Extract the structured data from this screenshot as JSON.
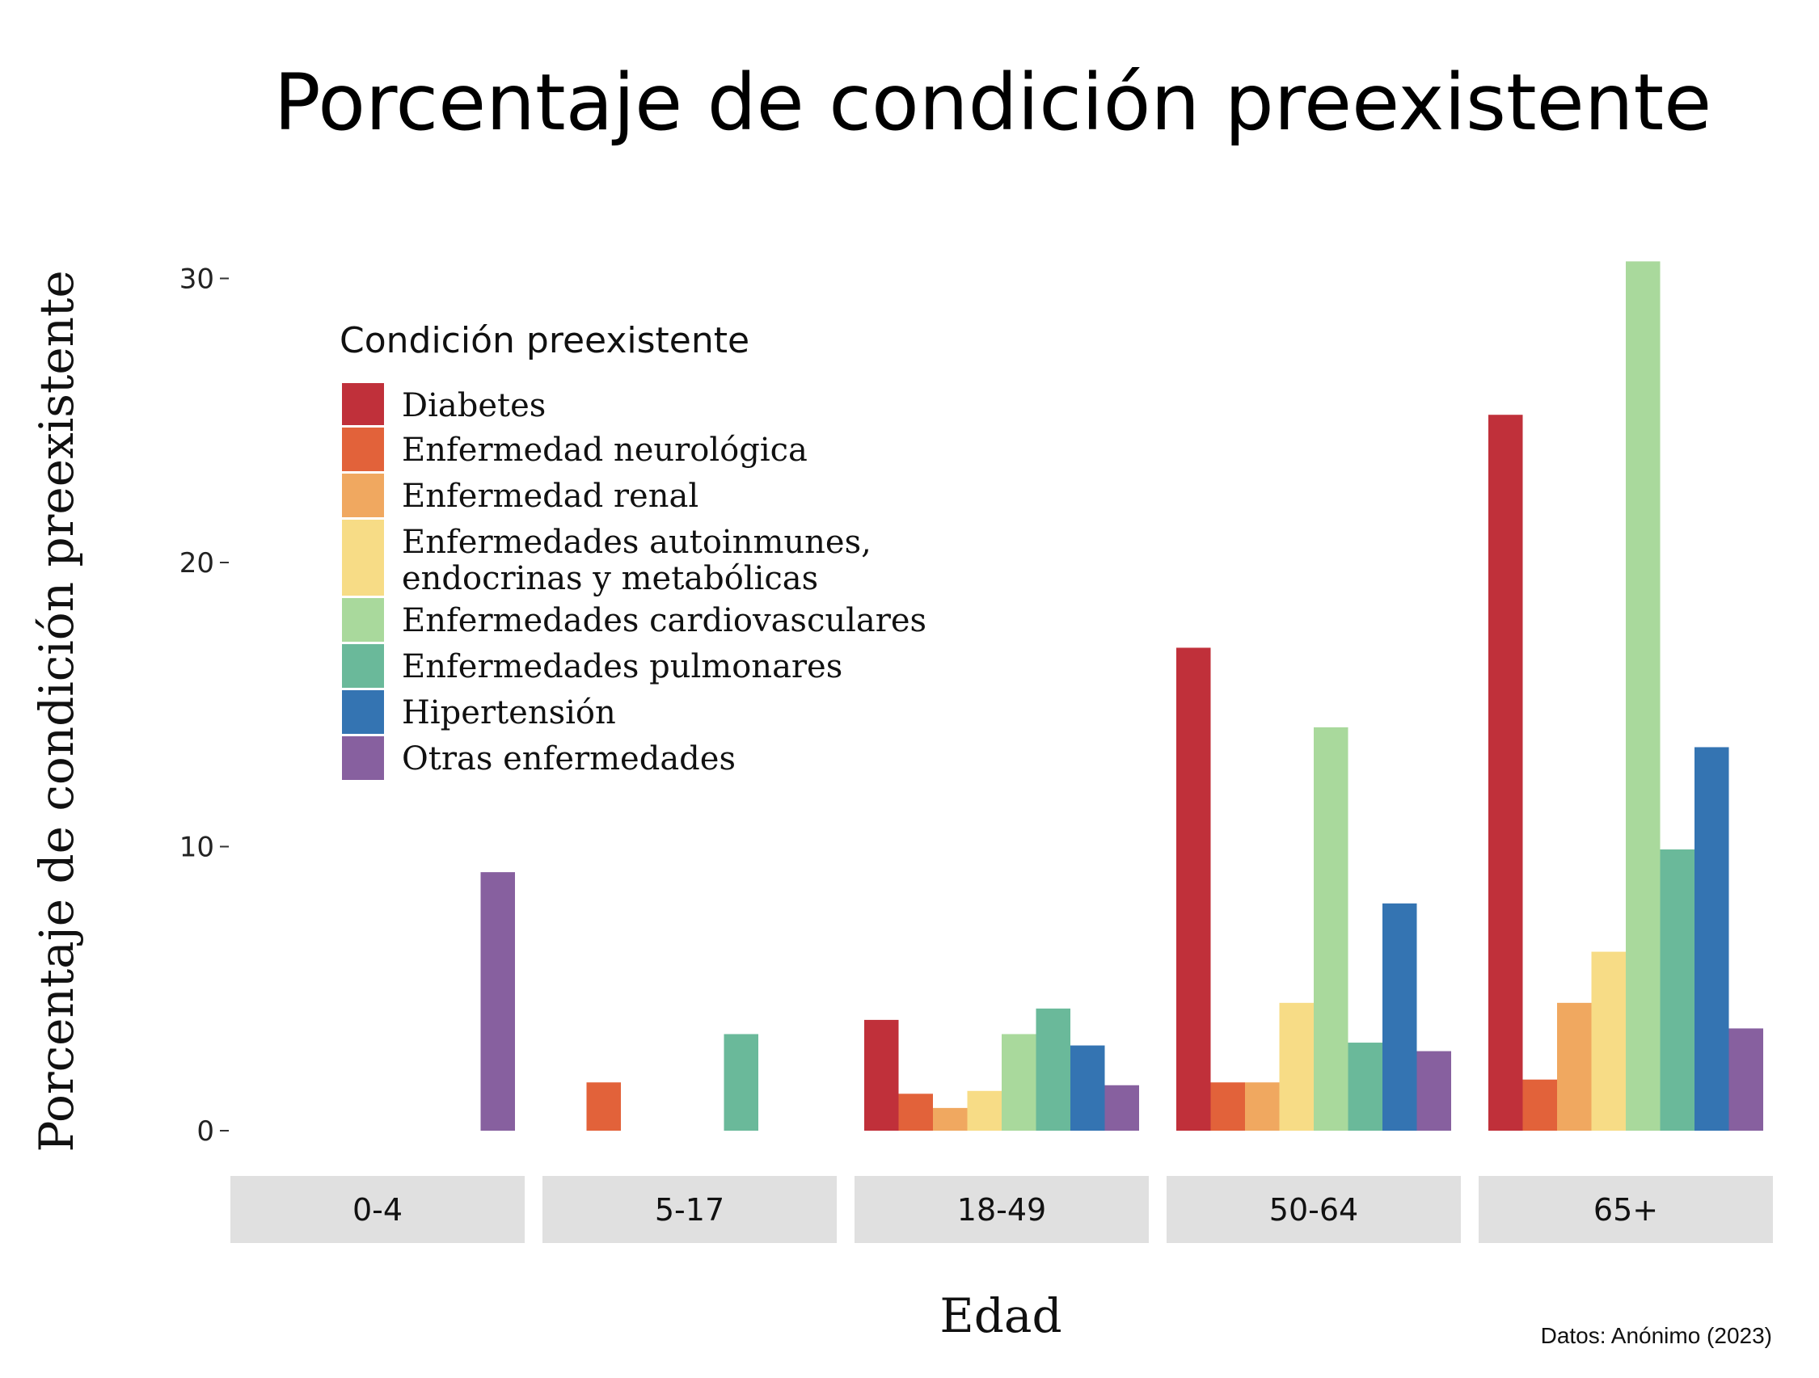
{
  "chart_data": {
    "type": "bar",
    "title": "Porcentaje de condición preexistente",
    "xlabel": "Edad",
    "ylabel": "Porcentaje de condición preexistente",
    "caption": "Datos: Anónimo (2023)",
    "ylim": [
      0,
      31
    ],
    "yticks": [
      "0",
      "10",
      "20",
      "30"
    ],
    "grid": false,
    "legend_title": "Condición preexistente",
    "legend_position": "top-left",
    "categories": [
      "0-4",
      "5-17",
      "18-49",
      "50-64",
      "65+"
    ],
    "series": [
      {
        "name": "Diabetes",
        "color": "#C0303A",
        "values": [
          null,
          null,
          3.9,
          17.0,
          25.2
        ]
      },
      {
        "name": "Enfermedad neurológica",
        "color": "#E2623A",
        "values": [
          null,
          1.7,
          1.3,
          1.7,
          1.8
        ]
      },
      {
        "name": "Enfermedad renal",
        "color": "#F0A860",
        "values": [
          null,
          null,
          0.8,
          1.7,
          4.5
        ]
      },
      {
        "name": "Enfermedades autoinmunes, endocrinas y metabólicas",
        "color": "#F7DC86",
        "values": [
          null,
          null,
          1.4,
          4.5,
          6.3
        ]
      },
      {
        "name": "Enfermedades cardiovasculares",
        "color": "#A9D99C",
        "values": [
          null,
          null,
          3.4,
          14.2,
          30.6
        ]
      },
      {
        "name": "Enfermedades pulmonares",
        "color": "#6AB99A",
        "values": [
          null,
          3.4,
          4.3,
          3.1,
          9.9
        ]
      },
      {
        "name": "Hipertensión",
        "color": "#3474B2",
        "values": [
          null,
          null,
          3.0,
          8.0,
          13.5
        ]
      },
      {
        "name": "Otras enfermedades",
        "color": "#87609F",
        "values": [
          9.1,
          null,
          1.6,
          2.8,
          3.6
        ]
      }
    ]
  }
}
